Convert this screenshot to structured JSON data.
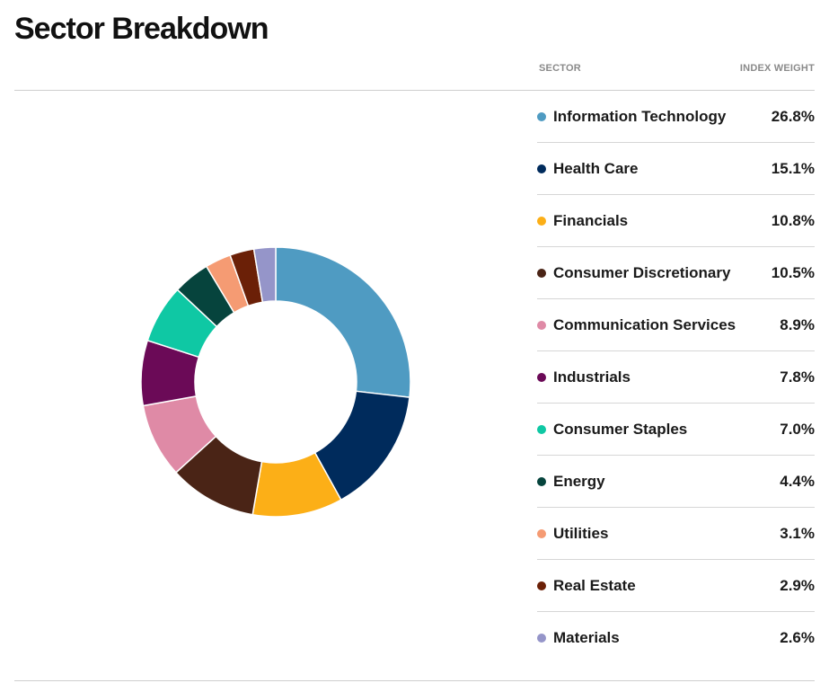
{
  "page": {
    "title": "Sector Breakdown"
  },
  "table": {
    "col_sector": "SECTOR",
    "col_weight": "INDEX WEIGHT"
  },
  "chart_data": {
    "type": "pie",
    "title": "Sector Breakdown",
    "donut": true,
    "legend_position": "right",
    "value_suffix": "%",
    "categories": [
      "Information Technology",
      "Health Care",
      "Financials",
      "Consumer Discretionary",
      "Communication Services",
      "Industrials",
      "Consumer Staples",
      "Energy",
      "Utilities",
      "Real Estate",
      "Materials"
    ],
    "values": [
      26.8,
      15.1,
      10.8,
      10.5,
      8.9,
      7.8,
      7.0,
      4.4,
      3.1,
      2.9,
      2.6
    ],
    "labels": [
      "26.8%",
      "15.1%",
      "10.8%",
      "10.5%",
      "8.9%",
      "7.8%",
      "7.0%",
      "4.4%",
      "3.1%",
      "2.9%",
      "2.6%"
    ],
    "colors": [
      "#4f9bc2",
      "#002b5c",
      "#fcaf17",
      "#4a2416",
      "#df8aa6",
      "#6b0a57",
      "#0fc8a4",
      "#06443d",
      "#f59b73",
      "#6b2007",
      "#9595c9"
    ]
  }
}
